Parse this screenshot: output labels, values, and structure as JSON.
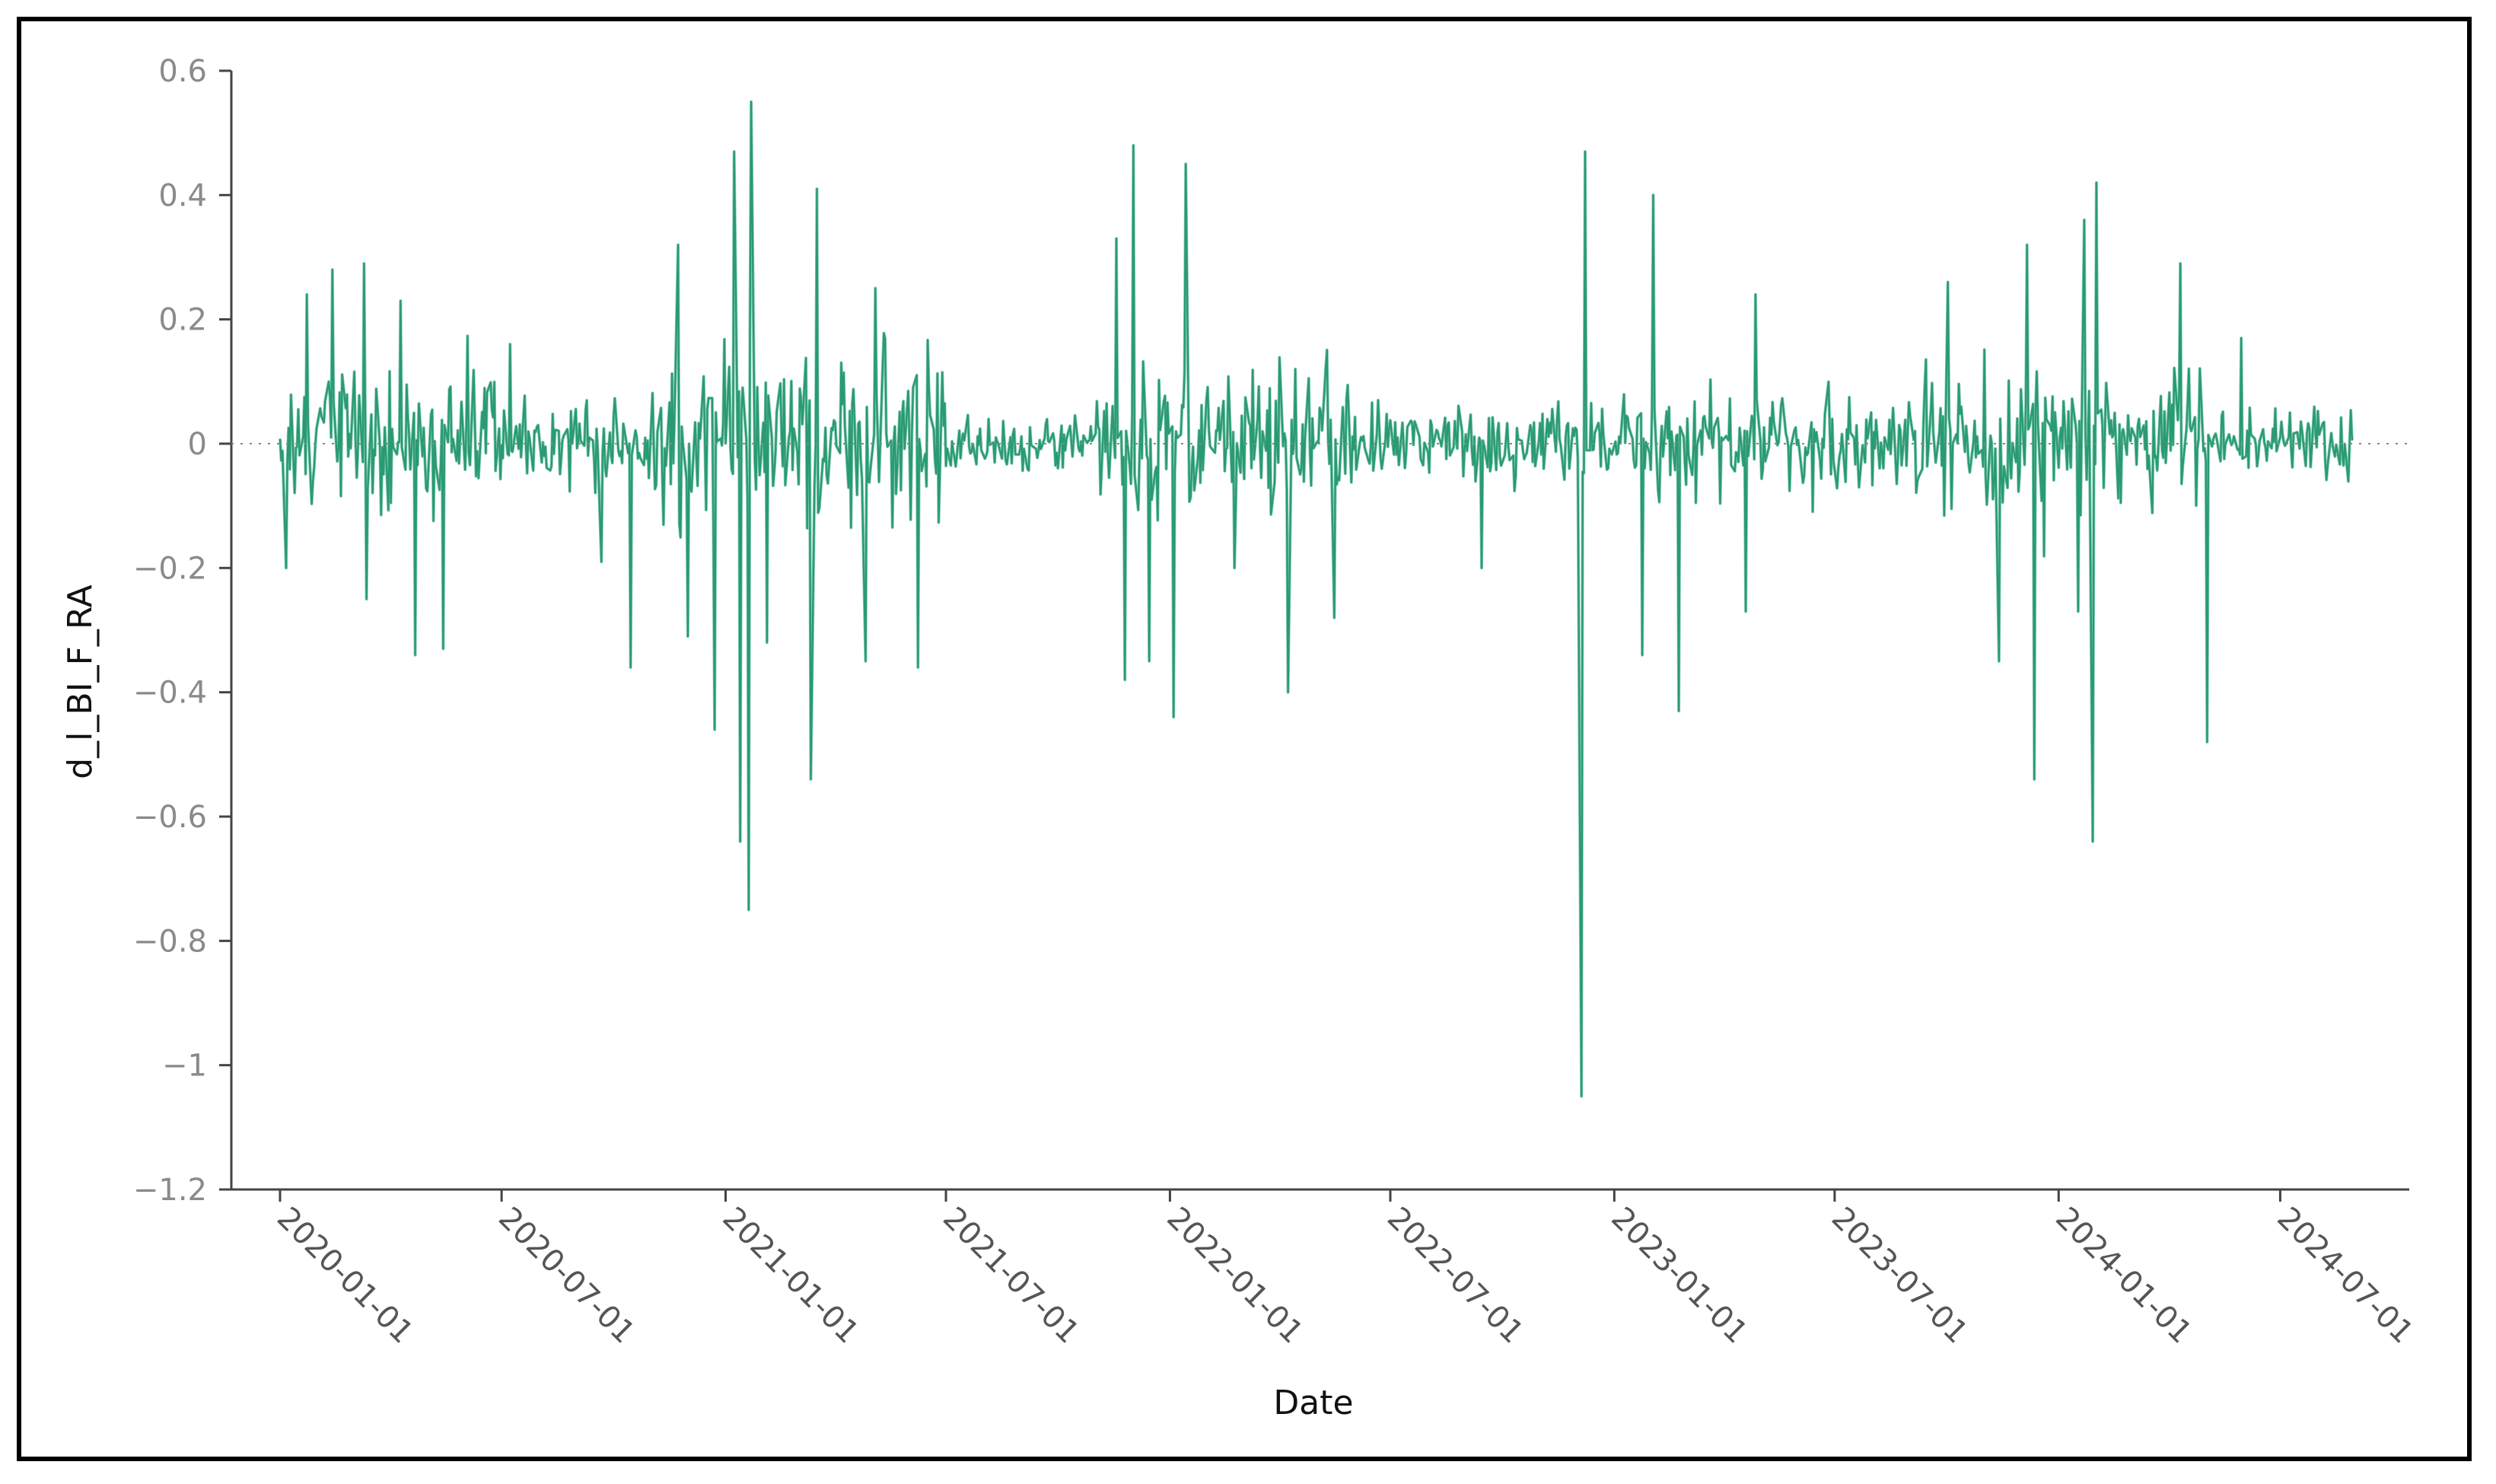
{
  "colors": {
    "series": "#2a9a72",
    "axis": "#444444",
    "tick_text": "#8a8a8a",
    "zero_line": "#888888"
  },
  "chart_data": {
    "type": "line",
    "title": "",
    "xlabel": "Date",
    "ylabel": "d_l_BI_F_RA",
    "ylim": [
      -1.2,
      0.6
    ],
    "xlim": [
      "2019-11-22",
      "2024-10-15"
    ],
    "yticks": [
      0.6,
      0.4,
      0.2,
      0,
      -0.2,
      -0.4,
      -0.6,
      -0.8,
      -1,
      -1.2
    ],
    "ytick_labels": [
      "0.6",
      "0.4",
      "0.2",
      "0",
      "−0.2",
      "−0.4",
      "−0.6",
      "−0.8",
      "−1",
      "−1.2"
    ],
    "xticks": [
      "2020-01-01",
      "2020-07-01",
      "2021-01-01",
      "2021-07-01",
      "2022-01-01",
      "2022-07-01",
      "2023-01-01",
      "2023-07-01",
      "2024-01-01",
      "2024-07-01"
    ],
    "zero_reference_line": true,
    "grid": false,
    "legend": "none",
    "series": [
      {
        "date_range": [
          "2020-01-01",
          "2024-08-30"
        ],
        "frequency": "business daily",
        "spikes": [
          {
            "date": "2020-01-06",
            "value": -0.2
          },
          {
            "date": "2020-01-23",
            "value": 0.24
          },
          {
            "date": "2020-02-13",
            "value": 0.28
          },
          {
            "date": "2020-03-10",
            "value": 0.29
          },
          {
            "date": "2020-03-12",
            "value": -0.25
          },
          {
            "date": "2020-04-09",
            "value": 0.23
          },
          {
            "date": "2020-04-21",
            "value": -0.34
          },
          {
            "date": "2020-05-14",
            "value": -0.33
          },
          {
            "date": "2020-07-08",
            "value": 0.16
          },
          {
            "date": "2020-09-21",
            "value": -0.19
          },
          {
            "date": "2020-10-15",
            "value": -0.36
          },
          {
            "date": "2020-11-23",
            "value": 0.32
          },
          {
            "date": "2020-12-01",
            "value": -0.31
          },
          {
            "date": "2020-12-23",
            "value": -0.46
          },
          {
            "date": "2021-01-08",
            "value": 0.47
          },
          {
            "date": "2021-01-13",
            "value": -0.64
          },
          {
            "date": "2021-01-20",
            "value": -0.75
          },
          {
            "date": "2021-01-22",
            "value": 0.55
          },
          {
            "date": "2021-02-04",
            "value": -0.32
          },
          {
            "date": "2021-03-12",
            "value": -0.54
          },
          {
            "date": "2021-03-17",
            "value": 0.41
          },
          {
            "date": "2021-04-26",
            "value": -0.35
          },
          {
            "date": "2021-05-04",
            "value": 0.25
          },
          {
            "date": "2021-06-08",
            "value": -0.36
          },
          {
            "date": "2021-11-18",
            "value": 0.33
          },
          {
            "date": "2021-11-25",
            "value": -0.38
          },
          {
            "date": "2021-12-02",
            "value": 0.48
          },
          {
            "date": "2021-12-15",
            "value": -0.35
          },
          {
            "date": "2022-01-04",
            "value": -0.44
          },
          {
            "date": "2022-01-14",
            "value": 0.45
          },
          {
            "date": "2022-02-23",
            "value": -0.2
          },
          {
            "date": "2022-04-08",
            "value": -0.4
          },
          {
            "date": "2022-05-16",
            "value": -0.28
          },
          {
            "date": "2022-09-14",
            "value": -0.2
          },
          {
            "date": "2022-12-05",
            "value": -1.05
          },
          {
            "date": "2022-12-08",
            "value": 0.47
          },
          {
            "date": "2023-01-24",
            "value": -0.34
          },
          {
            "date": "2023-02-02",
            "value": 0.4
          },
          {
            "date": "2023-02-23",
            "value": -0.43
          },
          {
            "date": "2023-04-19",
            "value": -0.27
          },
          {
            "date": "2023-04-27",
            "value": 0.24
          },
          {
            "date": "2023-10-02",
            "value": 0.26
          },
          {
            "date": "2023-11-13",
            "value": -0.35
          },
          {
            "date": "2023-12-06",
            "value": 0.32
          },
          {
            "date": "2023-12-12",
            "value": -0.54
          },
          {
            "date": "2024-01-17",
            "value": -0.27
          },
          {
            "date": "2024-01-22",
            "value": 0.36
          },
          {
            "date": "2024-01-29",
            "value": -0.64
          },
          {
            "date": "2024-02-01",
            "value": 0.42
          },
          {
            "date": "2024-04-10",
            "value": 0.29
          },
          {
            "date": "2024-05-02",
            "value": -0.48
          },
          {
            "date": "2024-05-30",
            "value": 0.17
          }
        ],
        "volatility_regimes": [
          {
            "from": "2020-01-01",
            "to": "2020-06-30",
            "amplitude": 0.11
          },
          {
            "from": "2020-07-01",
            "to": "2020-10-31",
            "amplitude": 0.05
          },
          {
            "from": "2020-11-01",
            "to": "2021-06-30",
            "amplitude": 0.12
          },
          {
            "from": "2021-07-01",
            "to": "2021-10-31",
            "amplitude": 0.04
          },
          {
            "from": "2021-11-01",
            "to": "2022-05-31",
            "amplitude": 0.1
          },
          {
            "from": "2022-06-01",
            "to": "2022-11-30",
            "amplitude": 0.05
          },
          {
            "from": "2022-12-01",
            "to": "2023-08-31",
            "amplitude": 0.07
          },
          {
            "from": "2023-09-01",
            "to": "2024-04-30",
            "amplitude": 0.1
          },
          {
            "from": "2024-05-01",
            "to": "2024-08-30",
            "amplitude": 0.04
          }
        ]
      }
    ]
  }
}
